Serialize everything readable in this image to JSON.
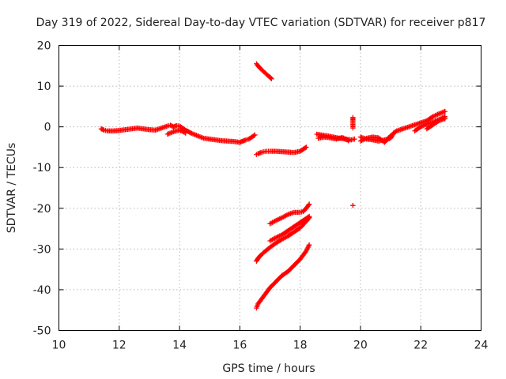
{
  "chart_data": {
    "type": "scatter",
    "title": "Day 319 of 2022, Sidereal Day-to-day VTEC variation (SDTVAR) for receiver p817",
    "xlabel": "GPS time / hours",
    "ylabel": "SDTVAR / TECUs",
    "xlim": [
      10,
      24
    ],
    "ylim": [
      -50,
      20
    ],
    "x_ticks": [
      10,
      12,
      14,
      16,
      18,
      20,
      22,
      24
    ],
    "y_ticks": [
      20,
      10,
      0,
      -10,
      -20,
      -30,
      -40,
      -50
    ],
    "x_tick_labels": [
      "10",
      "12",
      "14",
      "16",
      "18",
      "20",
      "22",
      "24"
    ],
    "y_tick_labels": [
      "20",
      "10",
      "0",
      "-10",
      "-20",
      "-30",
      "-40",
      "-50"
    ],
    "grid": true,
    "marker": "plus",
    "point_color": "#ff0000",
    "series": [
      {
        "x": [
          11.4,
          11.5,
          11.6,
          11.8,
          12.0,
          12.2,
          12.4,
          12.6,
          12.8,
          13.0,
          13.2,
          13.4,
          13.6,
          13.7,
          13.8,
          13.9,
          14.0,
          14.1,
          14.2,
          14.3,
          14.4,
          14.6,
          14.8,
          15.0,
          15.2,
          15.4,
          15.6,
          15.8,
          16.0,
          16.1,
          16.2,
          16.3,
          16.4,
          16.5
        ],
        "y": [
          -0.5,
          -0.8,
          -1.0,
          -1.0,
          -0.9,
          -0.7,
          -0.5,
          -0.3,
          -0.5,
          -0.7,
          -0.8,
          -0.3,
          0.2,
          0.4,
          0.0,
          0.3,
          0.2,
          -0.3,
          -0.8,
          -1.2,
          -1.6,
          -2.2,
          -2.8,
          -3.0,
          -3.2,
          -3.4,
          -3.5,
          -3.6,
          -3.8,
          -3.5,
          -3.2,
          -3.0,
          -2.5,
          -2.0
        ]
      },
      {
        "x": [
          13.6,
          13.8,
          14.0,
          14.2
        ],
        "y": [
          -1.8,
          -1.2,
          -0.8,
          -1.5
        ]
      },
      {
        "x": [
          16.55,
          16.6,
          16.7,
          16.8,
          16.9,
          17.0,
          17.05
        ],
        "y": [
          15.5,
          15.0,
          14.2,
          13.5,
          12.8,
          12.2,
          11.8
        ]
      },
      {
        "x": [
          16.55,
          16.6,
          16.7,
          16.8,
          16.9,
          17.0,
          17.2,
          17.4,
          17.6,
          17.8,
          18.0,
          18.1,
          18.2
        ],
        "y": [
          -6.8,
          -6.6,
          -6.3,
          -6.1,
          -6.0,
          -6.0,
          -6.0,
          -6.1,
          -6.2,
          -6.3,
          -6.0,
          -5.5,
          -5.0
        ]
      },
      {
        "x": [
          16.55,
          16.6,
          16.7,
          16.8,
          16.9,
          17.0,
          17.2,
          17.4,
          17.6,
          17.8,
          18.0,
          18.2,
          18.3
        ],
        "y": [
          -44.5,
          -43.5,
          -42.5,
          -41.5,
          -40.5,
          -39.5,
          -38.0,
          -36.5,
          -35.5,
          -34.0,
          -32.5,
          -30.5,
          -29.0
        ]
      },
      {
        "x": [
          16.55,
          16.6,
          16.7,
          16.8,
          16.9,
          17.0,
          17.2,
          17.4,
          17.6,
          17.8,
          18.0,
          18.2,
          18.3
        ],
        "y": [
          -33.0,
          -32.3,
          -31.5,
          -30.8,
          -30.2,
          -29.6,
          -28.5,
          -27.6,
          -26.8,
          -25.8,
          -24.8,
          -23.2,
          -22.3
        ]
      },
      {
        "x": [
          17.0,
          17.2,
          17.4,
          17.6,
          17.8,
          18.0,
          18.2,
          18.3
        ],
        "y": [
          -28.0,
          -27.2,
          -26.5,
          -25.5,
          -24.5,
          -23.5,
          -22.5,
          -22.0
        ]
      },
      {
        "x": [
          17.0,
          17.2,
          17.4,
          17.6,
          17.8,
          18.0,
          18.1,
          18.2,
          18.3
        ],
        "y": [
          -23.8,
          -23.0,
          -22.3,
          -21.5,
          -21.0,
          -21.0,
          -20.8,
          -20.0,
          -19.0
        ]
      },
      {
        "x": [
          18.55,
          18.7,
          18.9,
          19.1,
          19.3,
          19.5,
          19.7,
          19.8
        ],
        "y": [
          -1.8,
          -2.0,
          -2.2,
          -2.5,
          -2.8,
          -3.0,
          -3.2,
          -3.0
        ]
      },
      {
        "x": [
          18.6,
          18.8,
          19.0,
          19.2,
          19.4,
          19.6
        ],
        "y": [
          -2.8,
          -2.5,
          -2.7,
          -3.0,
          -2.6,
          -3.4
        ]
      },
      {
        "x": [
          19.75,
          19.75,
          19.75,
          19.75
        ],
        "y": [
          2.3,
          1.8,
          -0.3,
          -19.3
        ]
      },
      {
        "x": [
          20.0,
          20.2,
          20.4,
          20.6,
          20.8,
          21.0,
          21.1,
          21.2,
          21.4,
          21.6,
          21.8,
          22.0,
          22.2,
          22.4,
          22.6,
          22.8
        ],
        "y": [
          -2.5,
          -3.0,
          -3.2,
          -3.5,
          -3.2,
          -2.8,
          -1.5,
          -1.0,
          -0.5,
          0.0,
          0.5,
          1.0,
          1.5,
          2.5,
          3.2,
          3.8
        ]
      },
      {
        "x": [
          20.0,
          20.2,
          20.4,
          20.6,
          20.8,
          21.0
        ],
        "y": [
          -3.5,
          -2.8,
          -2.5,
          -2.7,
          -3.8,
          -2.2
        ]
      },
      {
        "x": [
          21.8,
          22.0,
          22.2,
          22.4,
          22.6,
          22.8
        ],
        "y": [
          -1.0,
          0.0,
          0.7,
          1.2,
          1.8,
          2.5
        ]
      },
      {
        "x": [
          22.2,
          22.4,
          22.6,
          22.8
        ],
        "y": [
          -0.5,
          0.5,
          1.5,
          2.0
        ]
      }
    ]
  }
}
